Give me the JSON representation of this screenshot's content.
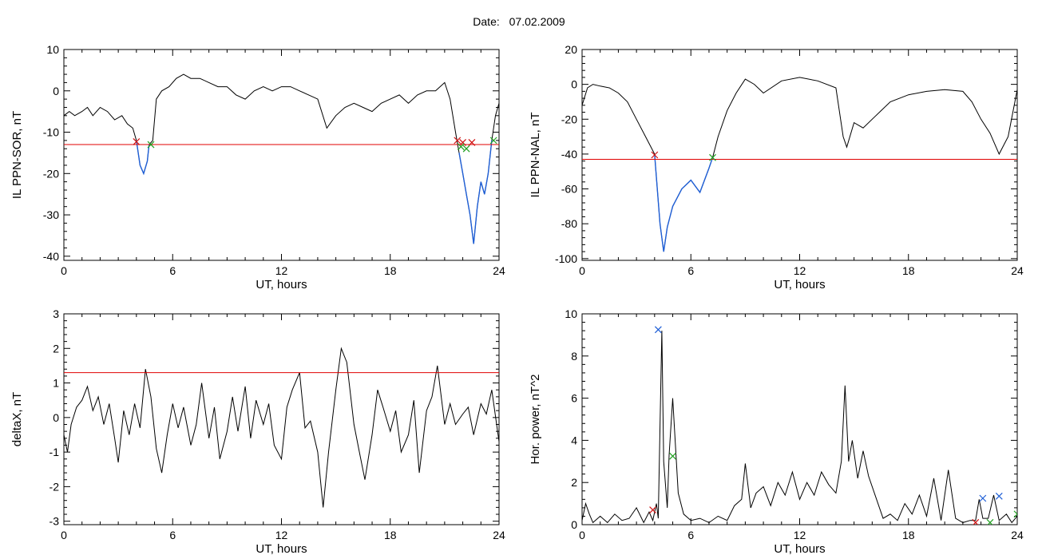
{
  "header": {
    "date_label": "Date:",
    "date_value": "07.02.2009"
  },
  "colors": {
    "threshold": "#e00000",
    "event": "#1f5fd6",
    "line": "#000000",
    "marker_start": "#d01010",
    "marker_end": "#20a020",
    "marker_peak": "#1f5fd6"
  },
  "chart_data": [
    {
      "type": "line",
      "id": "ppn_sor",
      "title": "",
      "xlabel": "UT, hours",
      "ylabel": "IL PPN-SOR, nT",
      "xlim": [
        0,
        24
      ],
      "ylim": [
        -41,
        10
      ],
      "xticks": [
        0,
        6,
        12,
        18,
        24
      ],
      "yticks": [
        -40,
        -30,
        -20,
        -10,
        0,
        10
      ],
      "threshold": -13,
      "series": [
        {
          "x": [
            0,
            0.3,
            0.6,
            1.0,
            1.3,
            1.6,
            2.0,
            2.4,
            2.8,
            3.2,
            3.5,
            3.8,
            4.0,
            4.2,
            4.4,
            4.6,
            4.7,
            4.9,
            5.1,
            5.4,
            5.8,
            6.2,
            6.6,
            7.0,
            7.5,
            8.0,
            8.5,
            9.0,
            9.5,
            10.0,
            10.5,
            11.0,
            11.5,
            12.0,
            12.5,
            13.0,
            13.5,
            14.0,
            14.5,
            15.0,
            15.5,
            16.0,
            16.5,
            17.0,
            17.5,
            18.0,
            18.5,
            19.0,
            19.5,
            20.0,
            20.5,
            21.0,
            21.3,
            21.6,
            21.8,
            22.0,
            22.2,
            22.4,
            22.6,
            22.8,
            23.0,
            23.2,
            23.4,
            23.6,
            23.8,
            24.0
          ],
          "values": [
            -6,
            -5,
            -6,
            -5,
            -4,
            -6,
            -4,
            -5,
            -7,
            -6,
            -8,
            -9,
            -12,
            -18,
            -20,
            -17,
            -13,
            -12,
            -2,
            0,
            1,
            3,
            4,
            3,
            3,
            2,
            1,
            1,
            -1,
            -2,
            0,
            1,
            0,
            1,
            1,
            0,
            -1,
            -2,
            -9,
            -6,
            -4,
            -3,
            -4,
            -5,
            -3,
            -2,
            -1,
            -3,
            -1,
            0,
            0,
            2,
            -2,
            -10,
            -15,
            -20,
            -25,
            -30,
            -37,
            -28,
            -22,
            -25,
            -20,
            -12,
            -6,
            -3
          ]
        },
        {
          "name": "event",
          "x": [
            4.0,
            4.2,
            4.4,
            4.6,
            4.7
          ],
          "values": [
            -12,
            -18,
            -20,
            -17,
            -13
          ]
        },
        {
          "name": "event",
          "x": [
            21.8,
            22.0,
            22.2,
            22.4,
            22.6,
            22.8,
            23.0,
            23.2,
            23.4,
            23.6
          ],
          "values": [
            -15,
            -20,
            -25,
            -30,
            -37,
            -28,
            -22,
            -25,
            -20,
            -12
          ]
        }
      ],
      "markers": [
        {
          "x": 4.0,
          "y": -12.3,
          "kind": "start"
        },
        {
          "x": 4.8,
          "y": -13,
          "kind": "end"
        },
        {
          "x": 21.7,
          "y": -12,
          "kind": "start"
        },
        {
          "x": 22.0,
          "y": -12.5,
          "kind": "start"
        },
        {
          "x": 22.5,
          "y": -12.5,
          "kind": "start"
        },
        {
          "x": 21.9,
          "y": -13.5,
          "kind": "end"
        },
        {
          "x": 22.2,
          "y": -14,
          "kind": "end"
        },
        {
          "x": 23.7,
          "y": -12,
          "kind": "end"
        }
      ]
    },
    {
      "type": "line",
      "id": "ppn_nal",
      "title": "",
      "xlabel": "UT, hours",
      "ylabel": "IL PPN-NAL, nT",
      "xlim": [
        0,
        24
      ],
      "ylim": [
        -101,
        20
      ],
      "xticks": [
        0,
        6,
        12,
        18,
        24
      ],
      "yticks": [
        -100,
        -80,
        -60,
        -40,
        -20,
        0,
        20
      ],
      "threshold": -43,
      "series": [
        {
          "x": [
            0,
            0.3,
            0.6,
            1.0,
            1.5,
            2.0,
            2.5,
            3.0,
            3.5,
            4.0,
            4.3,
            4.5,
            4.7,
            5.0,
            5.5,
            6.0,
            6.5,
            7.0,
            7.2,
            7.5,
            8.0,
            8.5,
            9.0,
            9.5,
            10.0,
            11.0,
            12.0,
            13.0,
            14.0,
            14.4,
            14.6,
            15.0,
            15.5,
            16.0,
            16.5,
            17.0,
            18.0,
            19.0,
            20.0,
            21.0,
            21.5,
            22.0,
            22.5,
            23.0,
            23.5,
            24.0
          ],
          "values": [
            -12,
            -2,
            0,
            -1,
            -2,
            -5,
            -10,
            -20,
            -30,
            -40,
            -80,
            -96,
            -82,
            -70,
            -60,
            -55,
            -62,
            -48,
            -42,
            -30,
            -15,
            -5,
            3,
            0,
            -5,
            2,
            4,
            2,
            -2,
            -30,
            -36,
            -22,
            -25,
            -20,
            -15,
            -10,
            -6,
            -4,
            -3,
            -4,
            -10,
            -20,
            -28,
            -40,
            -30,
            -3
          ]
        },
        {
          "name": "event",
          "x": [
            4.0,
            4.3,
            4.5,
            4.7,
            5.0,
            5.5,
            6.0,
            6.5,
            7.0,
            7.2
          ],
          "values": [
            -40,
            -80,
            -96,
            -82,
            -70,
            -60,
            -55,
            -62,
            -48,
            -42
          ]
        }
      ],
      "markers": [
        {
          "x": 4.0,
          "y": -40.5,
          "kind": "start"
        },
        {
          "x": 7.2,
          "y": -42,
          "kind": "end"
        }
      ]
    },
    {
      "type": "line",
      "id": "deltax",
      "title": "",
      "xlabel": "UT, hours",
      "ylabel": "deltaX, nT",
      "xlim": [
        0,
        24
      ],
      "ylim": [
        -3.1,
        3
      ],
      "xticks": [
        0,
        6,
        12,
        18,
        24
      ],
      "yticks": [
        -3,
        -2,
        -1,
        0,
        1,
        2,
        3
      ],
      "threshold": 1.3,
      "series": [
        {
          "x": [
            0,
            0.2,
            0.4,
            0.7,
            1.0,
            1.3,
            1.6,
            1.9,
            2.2,
            2.5,
            2.8,
            3.0,
            3.3,
            3.6,
            3.9,
            4.2,
            4.5,
            4.8,
            5.1,
            5.4,
            5.7,
            6.0,
            6.3,
            6.6,
            7.0,
            7.3,
            7.6,
            8.0,
            8.3,
            8.6,
            9.0,
            9.3,
            9.6,
            10.0,
            10.3,
            10.6,
            11.0,
            11.3,
            11.6,
            12.0,
            12.3,
            12.6,
            13.0,
            13.3,
            13.6,
            14.0,
            14.3,
            14.6,
            15.0,
            15.3,
            15.6,
            16.0,
            16.3,
            16.6,
            17.0,
            17.3,
            17.6,
            18.0,
            18.3,
            18.6,
            19.0,
            19.3,
            19.6,
            20.0,
            20.3,
            20.6,
            21.0,
            21.3,
            21.6,
            22.0,
            22.3,
            22.6,
            23.0,
            23.3,
            23.6,
            24.0
          ],
          "values": [
            -0.5,
            -1.0,
            -0.2,
            0.3,
            0.5,
            0.9,
            0.2,
            0.6,
            -0.2,
            0.4,
            -0.6,
            -1.3,
            0.2,
            -0.5,
            0.4,
            -0.3,
            1.4,
            0.6,
            -0.9,
            -1.6,
            -0.5,
            0.4,
            -0.3,
            0.3,
            -0.8,
            -0.2,
            1.0,
            -0.6,
            0.3,
            -1.2,
            -0.4,
            0.6,
            -0.4,
            0.9,
            -0.6,
            0.5,
            -0.2,
            0.4,
            -0.8,
            -1.2,
            0.3,
            0.8,
            1.3,
            -0.3,
            -0.1,
            -1.0,
            -2.6,
            -1.0,
            0.8,
            2.0,
            1.6,
            -0.2,
            -1.0,
            -1.8,
            -0.5,
            0.8,
            0.3,
            -0.4,
            0.2,
            -1.0,
            -0.5,
            0.5,
            -1.6,
            0.2,
            0.6,
            1.5,
            -0.2,
            0.4,
            -0.2,
            0.1,
            0.3,
            -0.5,
            0.4,
            0.1,
            0.8,
            -0.7
          ]
        }
      ]
    },
    {
      "type": "line",
      "id": "hor_power",
      "title": "",
      "xlabel": "UT, hours",
      "ylabel": "Hor. power, nT^2",
      "xlim": [
        0,
        24
      ],
      "ylim": [
        0,
        10
      ],
      "xticks": [
        0,
        6,
        12,
        18,
        24
      ],
      "yticks": [
        0,
        2,
        4,
        6,
        8,
        10
      ],
      "series": [
        {
          "x": [
            0,
            0.2,
            0.4,
            0.6,
            1.0,
            1.4,
            1.8,
            2.2,
            2.6,
            3.0,
            3.4,
            3.7,
            3.9,
            4.1,
            4.2,
            4.4,
            4.5,
            4.7,
            4.8,
            5.0,
            5.3,
            5.6,
            6.0,
            6.5,
            7.0,
            7.5,
            8.0,
            8.4,
            8.8,
            9.0,
            9.3,
            9.6,
            10.0,
            10.4,
            10.8,
            11.2,
            11.6,
            12.0,
            12.4,
            12.8,
            13.2,
            13.6,
            14.0,
            14.3,
            14.5,
            14.7,
            14.9,
            15.2,
            15.5,
            15.8,
            16.2,
            16.6,
            17.0,
            17.4,
            17.8,
            18.2,
            18.6,
            19.0,
            19.4,
            19.8,
            20.2,
            20.6,
            21.0,
            21.4,
            21.7,
            21.9,
            22.1,
            22.4,
            22.7,
            23.0,
            23.4,
            23.7,
            24.0
          ],
          "values": [
            0.2,
            1.0,
            0.5,
            0.1,
            0.4,
            0.1,
            0.5,
            0.2,
            0.3,
            0.8,
            0.1,
            0.6,
            0.2,
            1.0,
            0.3,
            9.2,
            3.0,
            0.8,
            3.3,
            6.0,
            1.5,
            0.5,
            0.2,
            0.3,
            0.1,
            0.4,
            0.2,
            0.9,
            1.2,
            2.9,
            0.8,
            1.5,
            1.8,
            0.9,
            2.0,
            1.4,
            2.5,
            1.2,
            2.0,
            1.4,
            2.5,
            1.9,
            1.5,
            3.0,
            6.6,
            3.0,
            4.0,
            2.2,
            3.5,
            2.3,
            1.3,
            0.3,
            0.5,
            0.2,
            1.0,
            0.5,
            1.4,
            0.4,
            2.2,
            0.2,
            2.6,
            0.3,
            0.1,
            0.2,
            0.2,
            1.2,
            0.3,
            0.3,
            1.4,
            0.2,
            0.5,
            0.1,
            0.4
          ]
        }
      ],
      "markers": [
        {
          "x": 4.2,
          "y": 9.25,
          "kind": "peak"
        },
        {
          "x": 5.0,
          "y": 3.25,
          "kind": "end"
        },
        {
          "x": 3.9,
          "y": 0.7,
          "kind": "start"
        },
        {
          "x": 22.1,
          "y": 1.25,
          "kind": "peak"
        },
        {
          "x": 23.0,
          "y": 1.35,
          "kind": "peak"
        },
        {
          "x": 21.7,
          "y": 0.1,
          "kind": "start"
        },
        {
          "x": 22.5,
          "y": 0.1,
          "kind": "end"
        },
        {
          "x": 24.0,
          "y": 0.5,
          "kind": "end"
        }
      ]
    }
  ]
}
